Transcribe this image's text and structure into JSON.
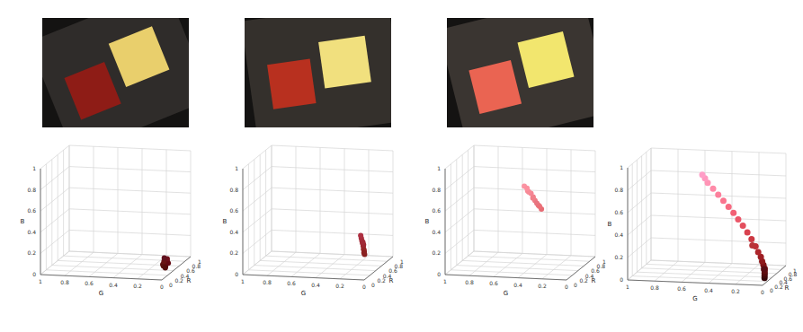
{
  "chart_data": [
    {
      "type": "scatter3d",
      "xlabel": "G",
      "ylabel": "R",
      "zlabel": "B",
      "xlim": [
        0,
        1
      ],
      "ylim": [
        0,
        1
      ],
      "zlim": [
        0,
        1
      ],
      "xticks": [
        0,
        0.2,
        0.4,
        0.6,
        0.8,
        1
      ],
      "yticks": [
        0,
        0.2,
        0.4,
        0.6,
        0.8,
        1
      ],
      "zticks": [
        0,
        0.2,
        0.4,
        0.6,
        0.8,
        1
      ],
      "grid": true,
      "x": [
        0.05,
        0.06,
        0.07,
        0.05,
        0.08,
        0.06,
        0.07,
        0.04,
        0.06,
        0.08,
        0.05,
        0.07
      ],
      "y": [
        0.34,
        0.36,
        0.38,
        0.4,
        0.37,
        0.42,
        0.35,
        0.39,
        0.44,
        0.41,
        0.33,
        0.38
      ],
      "z": [
        0.05,
        0.06,
        0.07,
        0.08,
        0.06,
        0.09,
        0.05,
        0.07,
        0.1,
        0.08,
        0.04,
        0.12
      ]
    },
    {
      "type": "scatter3d",
      "xlabel": "G",
      "ylabel": "R",
      "zlabel": "B",
      "xlim": [
        0,
        1
      ],
      "ylim": [
        0,
        1
      ],
      "zlim": [
        0,
        1
      ],
      "xticks": [
        0,
        0.2,
        0.4,
        0.6,
        0.8,
        1
      ],
      "yticks": [
        0,
        0.2,
        0.4,
        0.6,
        0.8,
        1
      ],
      "zticks": [
        0,
        0.2,
        0.4,
        0.6,
        0.8,
        1
      ],
      "grid": true,
      "x": [
        0.12,
        0.13,
        0.14,
        0.15,
        0.16,
        0.17,
        0.14,
        0.15,
        0.18,
        0.13,
        0.16,
        0.19
      ],
      "y": [
        0.52,
        0.55,
        0.57,
        0.6,
        0.62,
        0.64,
        0.58,
        0.61,
        0.66,
        0.54,
        0.63,
        0.68
      ],
      "z": [
        0.12,
        0.14,
        0.16,
        0.18,
        0.2,
        0.22,
        0.15,
        0.19,
        0.24,
        0.13,
        0.21,
        0.26
      ]
    },
    {
      "type": "scatter3d",
      "xlabel": "G",
      "ylabel": "R",
      "zlabel": "B",
      "xlim": [
        0,
        1
      ],
      "ylim": [
        0,
        1
      ],
      "zlim": [
        0,
        1
      ],
      "xticks": [
        0,
        0.2,
        0.4,
        0.6,
        0.8,
        1
      ],
      "yticks": [
        0,
        0.2,
        0.4,
        0.6,
        0.8,
        1
      ],
      "zticks": [
        0,
        0.2,
        0.4,
        0.6,
        0.8,
        1
      ],
      "grid": true,
      "x": [
        0.42,
        0.45,
        0.48,
        0.5,
        0.52,
        0.55,
        0.58,
        0.46,
        0.5,
        0.54,
        0.44,
        0.56
      ],
      "y": [
        0.9,
        0.92,
        0.93,
        0.95,
        0.96,
        0.97,
        0.98,
        0.91,
        0.94,
        0.97,
        0.92,
        0.99
      ],
      "z": [
        0.45,
        0.48,
        0.52,
        0.55,
        0.58,
        0.6,
        0.64,
        0.5,
        0.54,
        0.59,
        0.47,
        0.62
      ]
    },
    {
      "type": "scatter3d",
      "xlabel": "G",
      "ylabel": "R",
      "zlabel": "B",
      "xlim": [
        0,
        1
      ],
      "ylim": [
        0,
        1
      ],
      "zlim": [
        0,
        1
      ],
      "xticks": [
        0,
        0.2,
        0.4,
        0.6,
        0.8,
        1
      ],
      "yticks": [
        0,
        0.2,
        0.4,
        0.6,
        0.8,
        1
      ],
      "zticks": [
        0,
        0.2,
        0.4,
        0.6,
        0.8,
        1
      ],
      "grid": true,
      "x": [
        0.02,
        0.03,
        0.04,
        0.05,
        0.06,
        0.08,
        0.1,
        0.12,
        0.15,
        0.18,
        0.22,
        0.26,
        0.3,
        0.34,
        0.38,
        0.42,
        0.46,
        0.5,
        0.54,
        0.58,
        0.6,
        0.62,
        0.05,
        0.2
      ],
      "y": [
        0.2,
        0.26,
        0.32,
        0.38,
        0.44,
        0.5,
        0.56,
        0.62,
        0.68,
        0.74,
        0.8,
        0.85,
        0.89,
        0.92,
        0.95,
        0.97,
        0.98,
        0.99,
        1.0,
        1.0,
        1.0,
        1.0,
        0.35,
        0.72
      ],
      "z": [
        0.03,
        0.04,
        0.05,
        0.06,
        0.07,
        0.09,
        0.11,
        0.14,
        0.17,
        0.21,
        0.26,
        0.31,
        0.36,
        0.41,
        0.46,
        0.51,
        0.56,
        0.61,
        0.66,
        0.71,
        0.75,
        0.78,
        0.08,
        0.22
      ]
    }
  ]
}
